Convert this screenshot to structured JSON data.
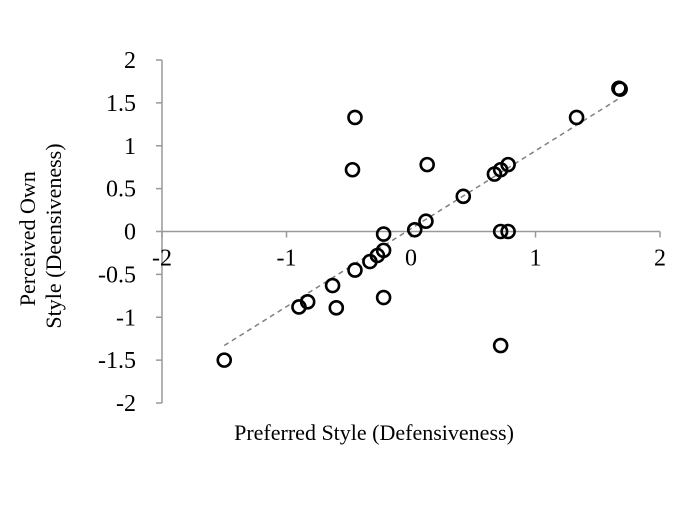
{
  "chart_data": {
    "type": "scatter",
    "xlabel": "Preferred Style (Defensiveness)",
    "ylabel_lines": [
      "Perceived Own",
      "Style (Deensiveness)"
    ],
    "xlim": [
      -2,
      2
    ],
    "ylim": [
      -2,
      2
    ],
    "x_ticks": [
      -2,
      -1,
      0,
      1,
      2
    ],
    "y_ticks": [
      2,
      1.5,
      1,
      0.5,
      0,
      -0.5,
      -1,
      -1.5,
      -2
    ],
    "x_tick_labels": [
      "-2",
      "-1",
      "0",
      "1",
      "2"
    ],
    "y_tick_labels": [
      "2",
      "1.5",
      "1",
      "0.5",
      "0",
      "-0.5",
      "-1",
      "-1.5",
      "-2"
    ],
    "grid": false,
    "trendline": {
      "style": "dashed",
      "color": "#808080",
      "x": [
        -1.5,
        1.67
      ],
      "y": [
        -1.33,
        1.55
      ]
    },
    "marker": {
      "shape": "open-circle",
      "color": "#000000"
    },
    "points": [
      {
        "x": -1.5,
        "y": -1.5
      },
      {
        "x": -0.9,
        "y": -0.88
      },
      {
        "x": -0.83,
        "y": -0.82
      },
      {
        "x": -0.63,
        "y": -0.63
      },
      {
        "x": -0.6,
        "y": -0.89
      },
      {
        "x": -0.45,
        "y": -0.45
      },
      {
        "x": -0.45,
        "y": 1.33
      },
      {
        "x": -0.47,
        "y": 0.72
      },
      {
        "x": -0.33,
        "y": -0.35
      },
      {
        "x": -0.27,
        "y": -0.28
      },
      {
        "x": -0.22,
        "y": -0.22
      },
      {
        "x": -0.22,
        "y": -0.77
      },
      {
        "x": -0.22,
        "y": -0.03
      },
      {
        "x": 0.03,
        "y": 0.02
      },
      {
        "x": 0.12,
        "y": 0.12
      },
      {
        "x": 0.13,
        "y": 0.78
      },
      {
        "x": 0.42,
        "y": 0.41
      },
      {
        "x": 0.67,
        "y": 0.67
      },
      {
        "x": 0.72,
        "y": 0.72
      },
      {
        "x": 0.78,
        "y": 0.78
      },
      {
        "x": 0.72,
        "y": 0.0
      },
      {
        "x": 0.78,
        "y": 0.0
      },
      {
        "x": 0.72,
        "y": -1.33
      },
      {
        "x": 1.33,
        "y": 1.33
      },
      {
        "x": 1.67,
        "y": 1.67
      },
      {
        "x": 1.68,
        "y": 1.66
      }
    ]
  }
}
